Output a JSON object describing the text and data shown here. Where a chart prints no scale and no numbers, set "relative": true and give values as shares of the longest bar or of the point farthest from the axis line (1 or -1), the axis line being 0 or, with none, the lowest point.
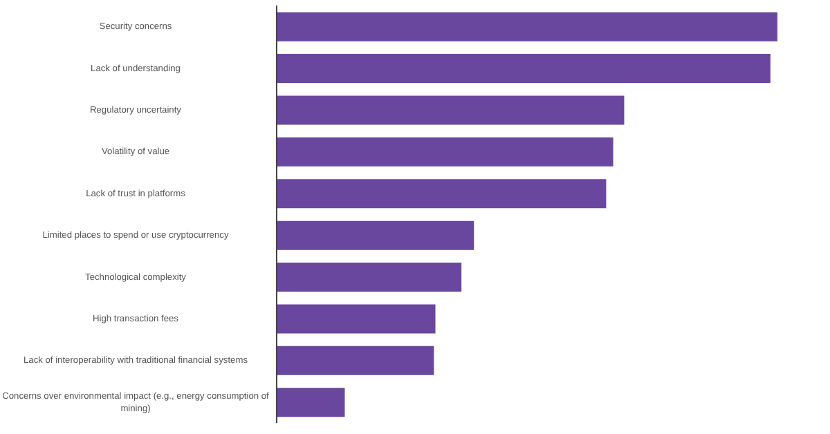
{
  "chart_data": {
    "type": "bar",
    "orientation": "horizontal",
    "relative": true,
    "color": "#6a479e",
    "categories": [
      "Security concerns",
      "Lack of understanding",
      "Regulatory uncertainty",
      "Volatility of value",
      "Lack of trust in platforms",
      "Limited places to spend or use cryptocurrency",
      "Technological complexity",
      "High transaction fees",
      "Lack of interoperability with traditional financial systems",
      "Concerns over environmental impact (e.g., energy consumption of mining)"
    ],
    "values": [
      1,
      0.986,
      0.694,
      0.672,
      0.658,
      0.394,
      0.369,
      0.317,
      0.314,
      0.136
    ]
  }
}
